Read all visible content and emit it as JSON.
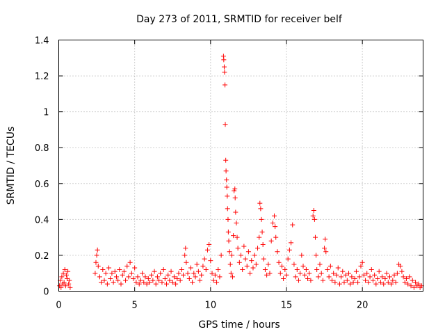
{
  "chart_data": {
    "type": "scatter",
    "title": "Day 273 of 2011, SRMTID for receiver belf",
    "xlabel": "GPS time / hours",
    "ylabel": "SRMTID / TECUs",
    "xlim": [
      0,
      24
    ],
    "ylim": [
      0,
      1.4
    ],
    "xticks": [
      0,
      5,
      10,
      15,
      20
    ],
    "xtick_labels": [
      "0",
      "5",
      "10",
      "15",
      "20"
    ],
    "yticks": [
      0,
      0.2,
      0.4,
      0.6,
      0.8,
      1.0,
      1.2,
      1.4
    ],
    "ytick_labels": [
      "0",
      "0.2",
      "0.4",
      "0.6",
      "0.8",
      "1",
      "1.2",
      "1.4"
    ],
    "grid": true,
    "marker": "+",
    "color": "#ff0000",
    "series": [
      {
        "name": "SRMTID",
        "points": [
          [
            0.05,
            0.03
          ],
          [
            0.1,
            0.06
          ],
          [
            0.15,
            0.02
          ],
          [
            0.2,
            0.08
          ],
          [
            0.25,
            0.04
          ],
          [
            0.3,
            0.1
          ],
          [
            0.35,
            0.05
          ],
          [
            0.4,
            0.12
          ],
          [
            0.45,
            0.03
          ],
          [
            0.5,
            0.09
          ],
          [
            0.55,
            0.07
          ],
          [
            0.6,
            0.11
          ],
          [
            0.65,
            0.04
          ],
          [
            0.7,
            0.06
          ],
          [
            0.75,
            0.02
          ],
          [
            2.4,
            0.1
          ],
          [
            2.45,
            0.16
          ],
          [
            2.5,
            0.2
          ],
          [
            2.55,
            0.23
          ],
          [
            2.6,
            0.14
          ],
          [
            2.7,
            0.08
          ],
          [
            2.8,
            0.05
          ],
          [
            2.9,
            0.12
          ],
          [
            3.0,
            0.06
          ],
          [
            3.1,
            0.1
          ],
          [
            3.2,
            0.04
          ],
          [
            3.3,
            0.13
          ],
          [
            3.4,
            0.07
          ],
          [
            3.5,
            0.1
          ],
          [
            3.6,
            0.05
          ],
          [
            3.7,
            0.11
          ],
          [
            3.8,
            0.08
          ],
          [
            3.9,
            0.06
          ],
          [
            4.0,
            0.12
          ],
          [
            4.1,
            0.04
          ],
          [
            4.2,
            0.09
          ],
          [
            4.3,
            0.11
          ],
          [
            4.4,
            0.06
          ],
          [
            4.5,
            0.14
          ],
          [
            4.6,
            0.08
          ],
          [
            4.7,
            0.16
          ],
          [
            4.8,
            0.1
          ],
          [
            4.9,
            0.07
          ],
          [
            5.0,
            0.13
          ],
          [
            5.1,
            0.05
          ],
          [
            5.2,
            0.08
          ],
          [
            5.3,
            0.04
          ],
          [
            5.4,
            0.06
          ],
          [
            5.5,
            0.1
          ],
          [
            5.6,
            0.05
          ],
          [
            5.7,
            0.08
          ],
          [
            5.8,
            0.04
          ],
          [
            5.9,
            0.07
          ],
          [
            6.0,
            0.05
          ],
          [
            6.1,
            0.09
          ],
          [
            6.2,
            0.06
          ],
          [
            6.3,
            0.11
          ],
          [
            6.4,
            0.04
          ],
          [
            6.5,
            0.08
          ],
          [
            6.6,
            0.06
          ],
          [
            6.7,
            0.1
          ],
          [
            6.8,
            0.05
          ],
          [
            6.9,
            0.12
          ],
          [
            7.0,
            0.07
          ],
          [
            7.1,
            0.04
          ],
          [
            7.2,
            0.09
          ],
          [
            7.3,
            0.06
          ],
          [
            7.4,
            0.11
          ],
          [
            7.5,
            0.05
          ],
          [
            7.6,
            0.08
          ],
          [
            7.7,
            0.04
          ],
          [
            7.8,
            0.07
          ],
          [
            7.9,
            0.1
          ],
          [
            8.0,
            0.06
          ],
          [
            8.1,
            0.12
          ],
          [
            8.2,
            0.09
          ],
          [
            8.3,
            0.2
          ],
          [
            8.35,
            0.24
          ],
          [
            8.4,
            0.16
          ],
          [
            8.5,
            0.1
          ],
          [
            8.6,
            0.07
          ],
          [
            8.7,
            0.13
          ],
          [
            8.8,
            0.05
          ],
          [
            8.9,
            0.1
          ],
          [
            9.0,
            0.08
          ],
          [
            9.1,
            0.15
          ],
          [
            9.2,
            0.11
          ],
          [
            9.3,
            0.06
          ],
          [
            9.4,
            0.09
          ],
          [
            9.5,
            0.14
          ],
          [
            9.6,
            0.18
          ],
          [
            9.7,
            0.12
          ],
          [
            9.8,
            0.23
          ],
          [
            9.9,
            0.26
          ],
          [
            10.0,
            0.17
          ],
          [
            10.1,
            0.1
          ],
          [
            10.2,
            0.06
          ],
          [
            10.3,
            0.09
          ],
          [
            10.4,
            0.05
          ],
          [
            10.5,
            0.12
          ],
          [
            10.6,
            0.08
          ],
          [
            10.7,
            0.2
          ],
          [
            10.85,
            1.31
          ],
          [
            10.87,
            1.29
          ],
          [
            10.9,
            1.25
          ],
          [
            10.92,
            1.22
          ],
          [
            10.95,
            1.15
          ],
          [
            10.97,
            0.93
          ],
          [
            11.0,
            0.73
          ],
          [
            11.02,
            0.67
          ],
          [
            11.05,
            0.62
          ],
          [
            11.07,
            0.58
          ],
          [
            11.1,
            0.53
          ],
          [
            11.12,
            0.46
          ],
          [
            11.15,
            0.4
          ],
          [
            11.17,
            0.33
          ],
          [
            11.2,
            0.28
          ],
          [
            11.25,
            0.22
          ],
          [
            11.3,
            0.15
          ],
          [
            11.35,
            0.1
          ],
          [
            11.4,
            0.2
          ],
          [
            11.45,
            0.08
          ],
          [
            11.5,
            0.31
          ],
          [
            11.55,
            0.56
          ],
          [
            11.6,
            0.57
          ],
          [
            11.62,
            0.52
          ],
          [
            11.65,
            0.44
          ],
          [
            11.7,
            0.38
          ],
          [
            11.75,
            0.3
          ],
          [
            11.8,
            0.24
          ],
          [
            11.9,
            0.16
          ],
          [
            12.0,
            0.2
          ],
          [
            12.1,
            0.12
          ],
          [
            12.2,
            0.25
          ],
          [
            12.3,
            0.18
          ],
          [
            12.4,
            0.14
          ],
          [
            12.5,
            0.22
          ],
          [
            12.6,
            0.1
          ],
          [
            12.7,
            0.17
          ],
          [
            12.8,
            0.13
          ],
          [
            12.9,
            0.2
          ],
          [
            13.0,
            0.15
          ],
          [
            13.1,
            0.24
          ],
          [
            13.2,
            0.3
          ],
          [
            13.25,
            0.49
          ],
          [
            13.3,
            0.46
          ],
          [
            13.35,
            0.4
          ],
          [
            13.4,
            0.33
          ],
          [
            13.45,
            0.26
          ],
          [
            13.5,
            0.18
          ],
          [
            13.6,
            0.12
          ],
          [
            13.7,
            0.09
          ],
          [
            13.8,
            0.15
          ],
          [
            13.9,
            0.1
          ],
          [
            14.0,
            0.28
          ],
          [
            14.1,
            0.38
          ],
          [
            14.2,
            0.42
          ],
          [
            14.25,
            0.36
          ],
          [
            14.3,
            0.3
          ],
          [
            14.4,
            0.22
          ],
          [
            14.5,
            0.16
          ],
          [
            14.6,
            0.1
          ],
          [
            14.7,
            0.14
          ],
          [
            14.8,
            0.07
          ],
          [
            14.9,
            0.12
          ],
          [
            15.0,
            0.09
          ],
          [
            15.1,
            0.18
          ],
          [
            15.2,
            0.23
          ],
          [
            15.3,
            0.27
          ],
          [
            15.4,
            0.37
          ],
          [
            15.5,
            0.15
          ],
          [
            15.6,
            0.08
          ],
          [
            15.7,
            0.12
          ],
          [
            15.8,
            0.06
          ],
          [
            15.9,
            0.1
          ],
          [
            16.0,
            0.2
          ],
          [
            16.1,
            0.14
          ],
          [
            16.2,
            0.09
          ],
          [
            16.3,
            0.12
          ],
          [
            16.4,
            0.07
          ],
          [
            16.5,
            0.1
          ],
          [
            16.6,
            0.06
          ],
          [
            16.75,
            0.42
          ],
          [
            16.8,
            0.45
          ],
          [
            16.85,
            0.4
          ],
          [
            16.9,
            0.3
          ],
          [
            16.95,
            0.2
          ],
          [
            17.0,
            0.12
          ],
          [
            17.1,
            0.08
          ],
          [
            17.2,
            0.15
          ],
          [
            17.3,
            0.1
          ],
          [
            17.4,
            0.06
          ],
          [
            17.5,
            0.24
          ],
          [
            17.55,
            0.29
          ],
          [
            17.6,
            0.22
          ],
          [
            17.7,
            0.12
          ],
          [
            17.8,
            0.08
          ],
          [
            17.9,
            0.14
          ],
          [
            18.0,
            0.06
          ],
          [
            18.1,
            0.1
          ],
          [
            18.2,
            0.05
          ],
          [
            18.3,
            0.09
          ],
          [
            18.4,
            0.13
          ],
          [
            18.5,
            0.04
          ],
          [
            18.6,
            0.08
          ],
          [
            18.7,
            0.11
          ],
          [
            18.8,
            0.05
          ],
          [
            18.9,
            0.09
          ],
          [
            19.0,
            0.06
          ],
          [
            19.1,
            0.1
          ],
          [
            19.2,
            0.04
          ],
          [
            19.3,
            0.08
          ],
          [
            19.4,
            0.05
          ],
          [
            19.5,
            0.07
          ],
          [
            19.6,
            0.11
          ],
          [
            19.7,
            0.05
          ],
          [
            19.8,
            0.08
          ],
          [
            19.9,
            0.14
          ],
          [
            20.0,
            0.16
          ],
          [
            20.1,
            0.09
          ],
          [
            20.2,
            0.06
          ],
          [
            20.3,
            0.1
          ],
          [
            20.4,
            0.05
          ],
          [
            20.5,
            0.08
          ],
          [
            20.6,
            0.12
          ],
          [
            20.7,
            0.06
          ],
          [
            20.8,
            0.09
          ],
          [
            20.9,
            0.04
          ],
          [
            21.0,
            0.07
          ],
          [
            21.1,
            0.11
          ],
          [
            21.2,
            0.05
          ],
          [
            21.3,
            0.08
          ],
          [
            21.4,
            0.04
          ],
          [
            21.5,
            0.07
          ],
          [
            21.6,
            0.1
          ],
          [
            21.7,
            0.05
          ],
          [
            21.8,
            0.08
          ],
          [
            21.9,
            0.04
          ],
          [
            22.0,
            0.06
          ],
          [
            22.1,
            0.09
          ],
          [
            22.2,
            0.05
          ],
          [
            22.3,
            0.1
          ],
          [
            22.4,
            0.15
          ],
          [
            22.5,
            0.14
          ],
          [
            22.6,
            0.11
          ],
          [
            22.7,
            0.08
          ],
          [
            22.8,
            0.05
          ],
          [
            22.9,
            0.07
          ],
          [
            23.0,
            0.04
          ],
          [
            23.1,
            0.08
          ],
          [
            23.2,
            0.03
          ],
          [
            23.3,
            0.06
          ],
          [
            23.4,
            0.02
          ],
          [
            23.5,
            0.05
          ],
          [
            23.6,
            0.03
          ],
          [
            23.7,
            0.04
          ],
          [
            23.8,
            0.02
          ],
          [
            23.9,
            0.03
          ]
        ]
      }
    ]
  }
}
